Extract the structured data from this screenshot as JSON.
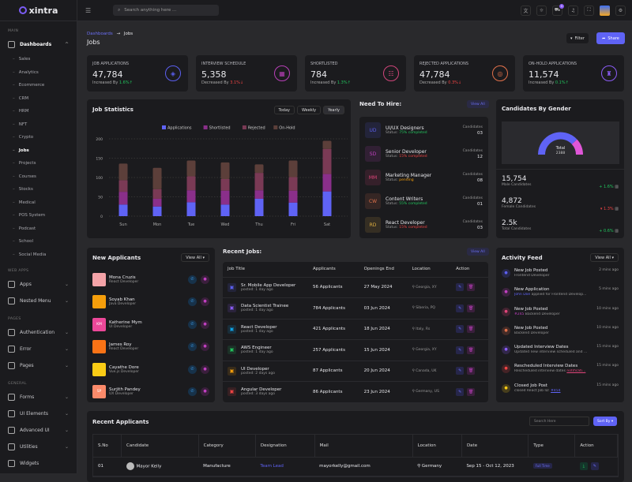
{
  "brand": "xintra",
  "header": {
    "search_placeholder": "Search anything here ...",
    "cart_count": "5"
  },
  "sidebar": {
    "main_label": "MAIN",
    "dashboards": "Dashboards",
    "subitems": [
      "Sales",
      "Analytics",
      "Ecommerce",
      "CRM",
      "HRM",
      "NFT",
      "Crypto",
      "Jobs",
      "Projects",
      "Courses",
      "Stocks",
      "Medical",
      "POS System",
      "Podcast",
      "School",
      "Social Media"
    ],
    "active": "Jobs",
    "webapps_label": "WEB APPS",
    "webapps": [
      "Apps",
      "Nested Menu"
    ],
    "pages_label": "PAGES",
    "pages": [
      "Authentication",
      "Error",
      "Pages"
    ],
    "general_label": "GENERAL",
    "general": [
      "Forms",
      "UI Elements",
      "Advanced UI",
      "Utilities",
      "Widgets"
    ]
  },
  "breadcrumb": {
    "parent": "Dashboards",
    "sep": "→",
    "current": "Jobs"
  },
  "page_title": "Jobs",
  "actions": {
    "filter": "Filter",
    "share": "Share"
  },
  "stats": [
    {
      "label": "JOB APPLICATIONS",
      "value": "47,784",
      "prefix": "Increased By",
      "change": "1.6%",
      "dir": "up",
      "color": "#5b5ff0",
      "icon": "layers-icon"
    },
    {
      "label": "INTERVIEW SCHEDULE",
      "value": "5,358",
      "prefix": "Decreased By",
      "change": "3.1%",
      "dir": "down",
      "color": "#b83fb8",
      "icon": "calendar-icon"
    },
    {
      "label": "SHORTLISTED",
      "value": "784",
      "prefix": "Increased By",
      "change": "1.3%",
      "dir": "up",
      "color": "#d0457a",
      "icon": "users-icon"
    },
    {
      "label": "REJECTED APPLICATIONS",
      "value": "47,784",
      "prefix": "Decreased By",
      "change": "0.3%",
      "dir": "down",
      "color": "#e0704a",
      "icon": "target-icon"
    },
    {
      "label": "ON-HOLD APPLICATIONS",
      "value": "11,574",
      "prefix": "Increased By",
      "change": "0.1%",
      "dir": "up",
      "color": "#8b5cf6",
      "icon": "stamp-icon"
    }
  ],
  "job_stats": {
    "title": "Job Statistics",
    "tabs": [
      "Today",
      "Weekly",
      "Yearly"
    ],
    "active_tab": "Yearly"
  },
  "chart_data": {
    "type": "bar",
    "stacked": true,
    "categories": [
      "Sun",
      "Mon",
      "Tue",
      "Wed",
      "Thu",
      "Fri",
      "Sat"
    ],
    "ylim": [
      0,
      200
    ],
    "yticks": [
      0,
      50,
      100,
      150,
      200
    ],
    "grid": true,
    "legend": "top",
    "series": [
      {
        "name": "Applications",
        "color": "#5f63f5",
        "values": [
          30,
          25,
          36,
          30,
          45,
          35,
          64
        ]
      },
      {
        "name": "Shortlisted",
        "color": "#8a2f8a",
        "values": [
          33,
          20,
          31,
          36,
          22,
          31,
          45
        ]
      },
      {
        "name": "Rejected",
        "color": "#7a3a55",
        "values": [
          30,
          25,
          36,
          30,
          45,
          35,
          65
        ]
      },
      {
        "name": "On-Hold",
        "color": "#5c3f3a",
        "values": [
          43,
          55,
          41,
          43,
          22,
          43,
          21
        ]
      }
    ]
  },
  "hire": {
    "title": "Need To Hire:",
    "view_all": "View All",
    "cand_label": "Candidates",
    "status_label": "Status:",
    "items": [
      {
        "abbr": "UD",
        "title": "UI/UX Designers",
        "status": "75% completed",
        "count": "03",
        "color": "#5b5ff0",
        "scolor": "#22c55e"
      },
      {
        "abbr": "SD",
        "title": "Senior Developer",
        "status": "15% completed",
        "count": "12",
        "color": "#c040c0",
        "scolor": "#ef4444"
      },
      {
        "abbr": "MM",
        "title": "Marketing Manager",
        "status": "pending",
        "count": "08",
        "color": "#e0457a",
        "scolor": "#f59e0b"
      },
      {
        "abbr": "CW",
        "title": "Content Writers",
        "status": "55% completed",
        "count": "01",
        "color": "#e0704a",
        "scolor": "#22c55e"
      },
      {
        "abbr": "RD",
        "title": "React Developer",
        "status": "15% completed",
        "count": "03",
        "color": "#e0b040",
        "scolor": "#ef4444"
      }
    ]
  },
  "gender": {
    "title": "Candidates By Gender",
    "total_label": "Total",
    "total": "2388",
    "male_color": "#5f63f5",
    "female_color": "#e056d8",
    "rows": [
      {
        "value": "15,754",
        "label": "Male Candidates",
        "change": "1.6%",
        "dir": "up"
      },
      {
        "value": "4,872",
        "label": "Female Candidates",
        "change": "1.3%",
        "dir": "down"
      },
      {
        "value": "2.5k",
        "label": "Total Candidates",
        "change": "0.6%",
        "dir": "up"
      }
    ]
  },
  "applicants": {
    "title": "New Applicants",
    "view_all": "View All",
    "items": [
      {
        "name": "Mona Cruzis",
        "role": "React Developer",
        "avatar": "#f4a3a8",
        "initials": ""
      },
      {
        "name": "Soyab Khan",
        "role": "Java Developer",
        "avatar": "#f59e0b",
        "initials": ""
      },
      {
        "name": "Katherine Mym",
        "role": "UI Developer",
        "avatar": "#ec4899",
        "initials": "KM"
      },
      {
        "name": "James Roy",
        "role": "React Developer",
        "avatar": "#f97316",
        "initials": ""
      },
      {
        "name": "Cayathe Dore",
        "role": "Vue.js Developer",
        "avatar": "#facc15",
        "initials": ""
      },
      {
        "name": "Surjith Pandey",
        "role": "UX Developer",
        "avatar": "#fb8a6a",
        "initials": "SP"
      }
    ]
  },
  "recent_jobs": {
    "title": "Recent Jobs:",
    "view_all": "View All",
    "columns": [
      "Job Title",
      "Applicants",
      "Openings End",
      "Location",
      "Action"
    ],
    "rows": [
      {
        "title": "Sr. Mobile App Developer",
        "posted": "posted: 1 day ago",
        "applicants": "56 Applicants",
        "end": "27 May 2024",
        "location": "Georgia, XY",
        "color": "#5b5ff0"
      },
      {
        "title": "Data Scientist Trainee",
        "posted": "posted: 1 day ago",
        "applicants": "784 Applicants",
        "end": "03 Jun 2024",
        "location": "Siberia, PQ",
        "color": "#8b5cf6"
      },
      {
        "title": "React Developer",
        "posted": "posted: 1 day ago",
        "applicants": "421 Applicants",
        "end": "18 Jun 2024",
        "location": "Italy, Rs",
        "color": "#0ea5e9"
      },
      {
        "title": "AWS Engineer",
        "posted": "posted: 1 day ago",
        "applicants": "257 Applicants",
        "end": "15 Jun 2024",
        "location": "Georgia, XY",
        "color": "#22c55e"
      },
      {
        "title": "UI Developer",
        "posted": "posted: 2 days ago",
        "applicants": "87 Applicants",
        "end": "20 Jun 2024",
        "location": "Canada, UK",
        "color": "#f59e0b"
      },
      {
        "title": "Angular Developer",
        "posted": "posted: 3 days ago",
        "applicants": "86 Applicants",
        "end": "23 Jun 2024",
        "location": "Germany, US",
        "color": "#ef4444"
      }
    ]
  },
  "activity": {
    "title": "Activity Feed",
    "view_all": "View All",
    "items": [
      {
        "title": "New Job Posted",
        "time": "2 mins ago",
        "pre": "",
        "link": "",
        "desc": "Frontend Developer",
        "color": "#5b5ff0"
      },
      {
        "title": "New Application",
        "time": "5 mins ago",
        "pre": "John Doe",
        "link": "",
        "desc": " applied for Frontend Develop...",
        "color": "#c040c0"
      },
      {
        "title": "New Job Posted",
        "time": "10 mins ago",
        "pre": "#245",
        "link": "",
        "desc": " Backend Developer",
        "color": "#e0457a"
      },
      {
        "title": "New Job Posted",
        "time": "10 mins ago",
        "pre": "",
        "link": "",
        "desc": "Backend Developer",
        "color": "#e0704a"
      },
      {
        "title": "Updated Interview Dates",
        "time": "15 mins ago",
        "pre": "",
        "link": "",
        "desc": "Updated new interview scheduled and ...",
        "color": "#8b5cf6"
      },
      {
        "title": "Rescheduled Interview Dates",
        "time": "15 mins ago",
        "pre": "",
        "link": "notificati...",
        "desc": "Rescheduled interview dates ",
        "color": "#ef4444"
      },
      {
        "title": "Closed Job Post",
        "time": "15 mins ago",
        "pre": "",
        "link": "#454",
        "desc": "closed React Job ID: ",
        "color": "#facc15"
      }
    ]
  },
  "recent_applicants": {
    "title": "Recent Applicants",
    "search_placeholder": "Search Here",
    "sort": "Sort By",
    "columns": [
      "S.No",
      "Candidate",
      "Category",
      "Designation",
      "Mail",
      "Location",
      "Date",
      "Type",
      "Action"
    ],
    "rows": [
      {
        "sno": "01",
        "candidate": "Mayor Kelly",
        "category": "Manufacture",
        "designation": "Team Lead",
        "mail": "mayorkelly@gmail.com",
        "location": "Germany",
        "date": "Sep 15 - Oct 12, 2023",
        "type": "Full Time"
      }
    ]
  }
}
